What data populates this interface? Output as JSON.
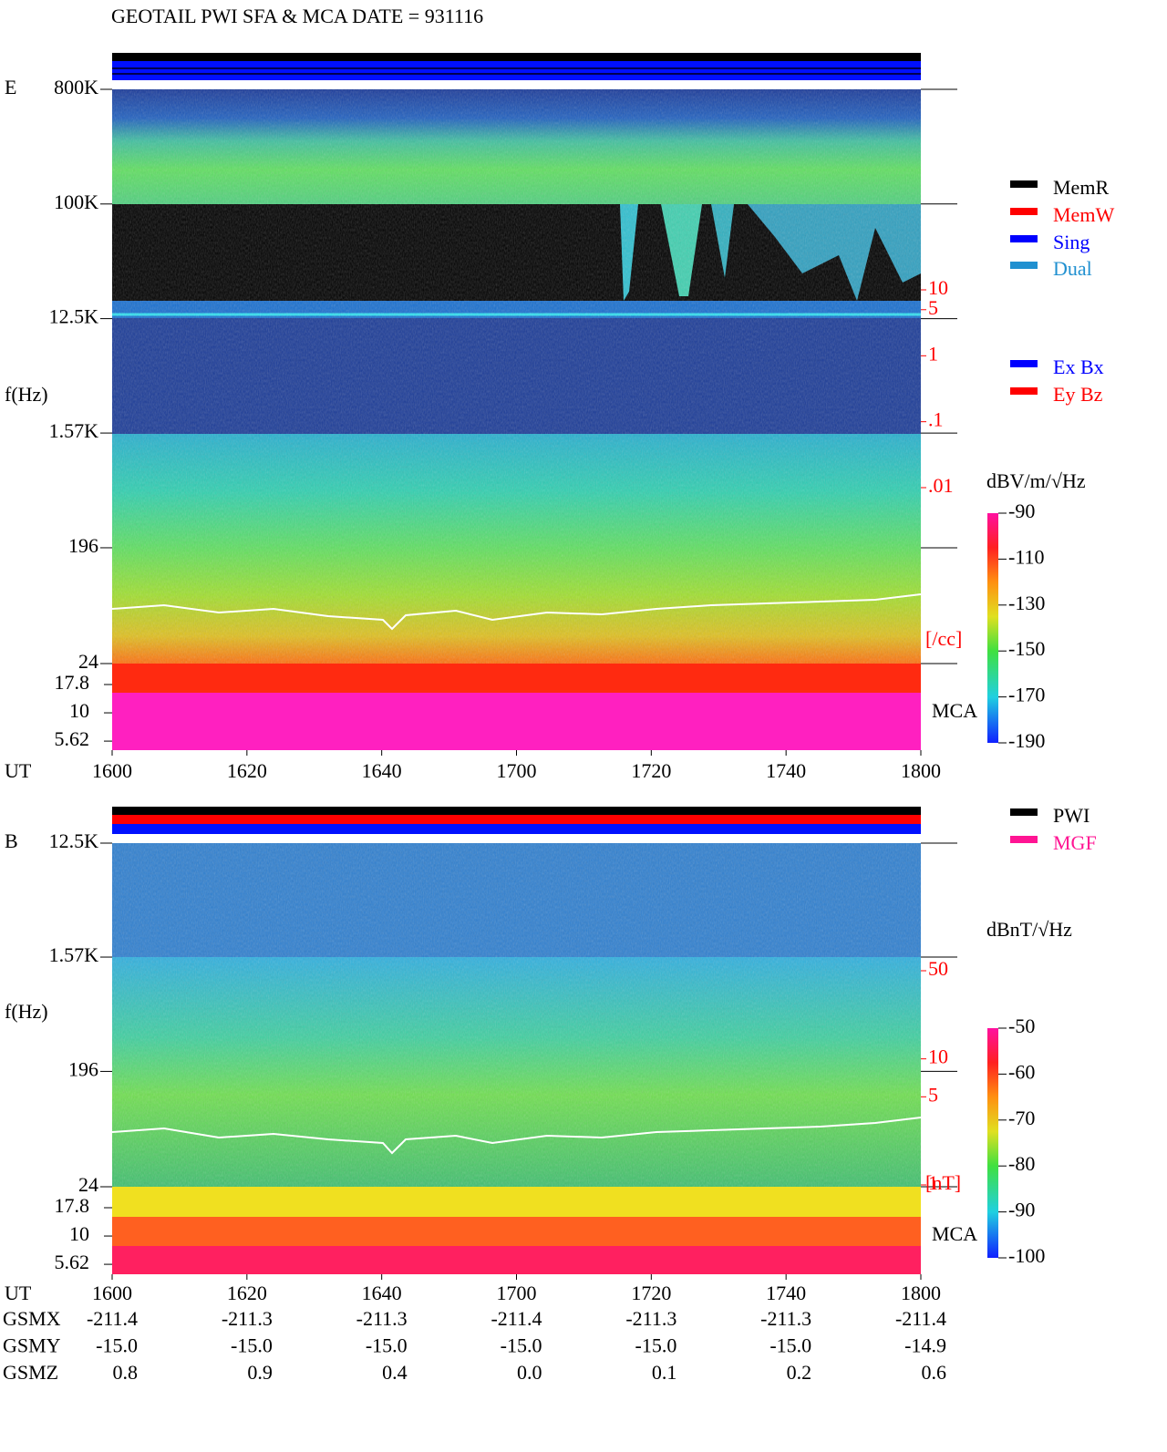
{
  "chart_data": [
    {
      "type": "spectrogram",
      "title": "GEOTAIL  PWI SFA & MCA   DATE = 931116",
      "panel": "E",
      "y_label": "f(Hz)",
      "x_label": "UT",
      "mca_label": "MCA",
      "categories": [
        "1600",
        "1620",
        "1640",
        "1700",
        "1720",
        "1740",
        "1800"
      ],
      "yscale": "log",
      "ylim": [
        24,
        800000
      ],
      "yticks": [
        {
          "value": 800000,
          "label": "800K"
        },
        {
          "value": 100000,
          "label": "100K"
        },
        {
          "value": 12500,
          "label": "12.5K"
        },
        {
          "value": 1570,
          "label": "1.57K"
        },
        196,
        24
      ],
      "mca_yticks": [
        17.8,
        10,
        5.62
      ],
      "y2scale": "log",
      "y2lim": [
        0.01,
        10
      ],
      "y2ticks": [
        10,
        5,
        1,
        {
          "value": 0.1,
          "label": ".1"
        },
        {
          "value": 0.01,
          "label": ".01"
        }
      ],
      "y2_label": "[/cc]",
      "legend": [
        {
          "name": "MemR",
          "color": "#000000"
        },
        {
          "name": "MemW",
          "color": "#ff0000"
        },
        {
          "name": "Sing",
          "color": "#0000ff"
        },
        {
          "name": "Dual",
          "color": "#2090d0"
        }
      ],
      "legend2": [
        {
          "name": "Ex Bx",
          "color": "#0000ff"
        },
        {
          "name": "Ey Bz",
          "color": "#ff0000"
        }
      ],
      "colorbar_label": "dBV/m/√Hz",
      "zlim": [
        -190,
        -90
      ],
      "zticks": [
        -90,
        -110,
        -130,
        -150,
        -170,
        -190
      ]
    },
    {
      "type": "spectrogram",
      "panel": "B",
      "y_label": "f(Hz)",
      "x_label": "UT",
      "mca_label": "MCA",
      "categories": [
        "1600",
        "1620",
        "1640",
        "1700",
        "1720",
        "1740",
        "1800"
      ],
      "yscale": "log",
      "ylim": [
        24,
        12500
      ],
      "yticks": [
        {
          "value": 12500,
          "label": "12.5K"
        },
        {
          "value": 1570,
          "label": "1.57K"
        },
        196,
        24
      ],
      "mca_yticks": [
        17.8,
        10,
        5.62
      ],
      "y2scale": "log",
      "y2lim": [
        1,
        50
      ],
      "y2ticks": [
        50,
        10,
        5,
        1
      ],
      "y2_label": "[nT]",
      "legend": [
        {
          "name": "PWI",
          "color": "#000000"
        },
        {
          "name": "MGF",
          "color": "#ff1493"
        }
      ],
      "colorbar_label": "dBnT/√Hz",
      "zlim": [
        -100,
        -50
      ],
      "zticks": [
        -50,
        -60,
        -70,
        -80,
        -90,
        -100
      ],
      "orbit": {
        "labels": [
          "GSMX",
          "GSMY",
          "GSMZ"
        ],
        "rows": [
          [
            "-211.4",
            "-211.3",
            "-211.3",
            "-211.4",
            "-211.3",
            "-211.3",
            "-211.4"
          ],
          [
            "-15.0",
            "-15.0",
            "-15.0",
            "-15.0",
            "-15.0",
            "-15.0",
            "-14.9"
          ],
          [
            "0.8",
            "0.9",
            "0.4",
            "0.0",
            "0.1",
            "0.2",
            "0.6"
          ]
        ]
      }
    }
  ]
}
